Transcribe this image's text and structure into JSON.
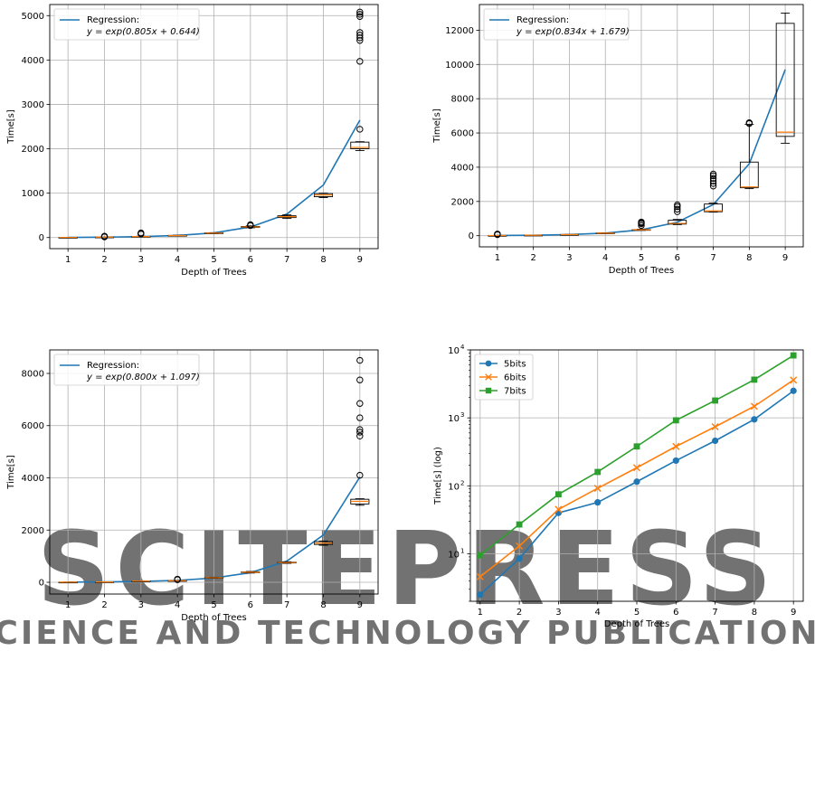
{
  "colors": {
    "blue": "#1f77b4",
    "orange": "#ff7f0e",
    "green": "#2ca02c",
    "grid": "#b0b0b0",
    "box": "#000000",
    "median": "#ff7f0e",
    "watermark": "#e6e6e6"
  },
  "watermark": {
    "line1": "SCITEPRESS",
    "line2": "SCIENCE AND TECHNOLOGY PUBLICATIONS"
  },
  "chart_data": [
    {
      "type": "box",
      "xlabel": "Depth of Trees",
      "ylabel": "Time[s]",
      "xlim": [
        0.5,
        9.5
      ],
      "ylim": [
        -250,
        5250
      ],
      "yticks": [
        0,
        1000,
        2000,
        3000,
        4000,
        5000
      ],
      "categories": [
        1,
        2,
        3,
        4,
        5,
        6,
        7,
        8,
        9
      ],
      "grid": true,
      "legend_position": "top-left",
      "regression": {
        "legend_title": "Regression:",
        "legend_formula": "y = exp(0.805x + 0.644)",
        "x": [
          1,
          2,
          3,
          4,
          5,
          6,
          7,
          8,
          9
        ],
        "y": [
          4,
          9,
          21,
          47,
          106,
          237,
          529,
          1183,
          2645
        ]
      },
      "boxes": [
        {
          "x": 1,
          "q1": 2,
          "median": 3,
          "q3": 4,
          "wlo": 1,
          "whi": 6,
          "outliers": []
        },
        {
          "x": 2,
          "q1": 7,
          "median": 9,
          "q3": 11,
          "wlo": 5,
          "whi": 14,
          "outliers": [
            15,
            22,
            30
          ]
        },
        {
          "x": 3,
          "q1": 20,
          "median": 23,
          "q3": 26,
          "wlo": 17,
          "whi": 30,
          "outliers": [
            80,
            95,
            105
          ]
        },
        {
          "x": 4,
          "q1": 40,
          "median": 44,
          "q3": 48,
          "wlo": 36,
          "whi": 52,
          "outliers": []
        },
        {
          "x": 5,
          "q1": 95,
          "median": 100,
          "q3": 105,
          "wlo": 90,
          "whi": 110,
          "outliers": []
        },
        {
          "x": 6,
          "q1": 230,
          "median": 240,
          "q3": 250,
          "wlo": 220,
          "whi": 262,
          "outliers": [
            270,
            290
          ]
        },
        {
          "x": 7,
          "q1": 450,
          "median": 470,
          "q3": 490,
          "wlo": 430,
          "whi": 510,
          "outliers": []
        },
        {
          "x": 8,
          "q1": 920,
          "median": 960,
          "q3": 990,
          "wlo": 900,
          "whi": 1000,
          "outliers": []
        },
        {
          "x": 9,
          "q1": 2000,
          "median": 2030,
          "q3": 2150,
          "wlo": 1960,
          "whi": 2160,
          "outliers": [
            2440,
            3970,
            4440,
            4500,
            4560,
            4620,
            4980,
            5030,
            5080
          ]
        }
      ]
    },
    {
      "type": "box",
      "xlabel": "Depth of Trees",
      "ylabel": "Time[s]",
      "xlim": [
        0.5,
        9.5
      ],
      "ylim": [
        -650,
        13500
      ],
      "yticks": [
        0,
        2000,
        4000,
        6000,
        8000,
        10000,
        12000
      ],
      "categories": [
        1,
        2,
        3,
        4,
        5,
        6,
        7,
        8,
        9
      ],
      "grid": true,
      "legend_position": "top-left",
      "regression": {
        "legend_title": "Regression:",
        "legend_formula": "y = exp(0.834x + 1.679)",
        "x": [
          1,
          2,
          3,
          4,
          5,
          6,
          7,
          8,
          9
        ],
        "y": [
          12,
          29,
          65,
          150,
          345,
          790,
          1820,
          4200,
          9700
        ]
      },
      "boxes": [
        {
          "x": 1,
          "q1": 8,
          "median": 10,
          "q3": 12,
          "wlo": 5,
          "whi": 15,
          "outliers": [
            60,
            80,
            100
          ]
        },
        {
          "x": 2,
          "q1": 25,
          "median": 28,
          "q3": 31,
          "wlo": 22,
          "whi": 34,
          "outliers": []
        },
        {
          "x": 3,
          "q1": 60,
          "median": 65,
          "q3": 70,
          "wlo": 55,
          "whi": 75,
          "outliers": []
        },
        {
          "x": 4,
          "q1": 140,
          "median": 150,
          "q3": 160,
          "wlo": 130,
          "whi": 170,
          "outliers": []
        },
        {
          "x": 5,
          "q1": 330,
          "median": 345,
          "q3": 360,
          "wlo": 310,
          "whi": 380,
          "outliers": [
            600,
            700,
            750,
            800
          ]
        },
        {
          "x": 6,
          "q1": 680,
          "median": 720,
          "q3": 900,
          "wlo": 650,
          "whi": 950,
          "outliers": [
            1400,
            1550,
            1700,
            1800
          ]
        },
        {
          "x": 7,
          "q1": 1400,
          "median": 1450,
          "q3": 1850,
          "wlo": 1380,
          "whi": 1900,
          "outliers": [
            2900,
            3050,
            3200,
            3350,
            3500,
            3600
          ]
        },
        {
          "x": 8,
          "q1": 2800,
          "median": 2850,
          "q3": 4300,
          "wlo": 2750,
          "whi": 6500,
          "outliers": [
            6550,
            6600
          ]
        },
        {
          "x": 9,
          "q1": 5800,
          "median": 6050,
          "q3": 12400,
          "wlo": 5400,
          "whi": 13000,
          "outliers": []
        }
      ]
    },
    {
      "type": "box",
      "xlabel": "Depth of Trees",
      "ylabel": "Time[s]",
      "xlim": [
        0.5,
        9.5
      ],
      "ylim": [
        -450,
        8900
      ],
      "yticks": [
        0,
        2000,
        4000,
        6000,
        8000
      ],
      "categories": [
        1,
        2,
        3,
        4,
        5,
        6,
        7,
        8,
        9
      ],
      "grid": true,
      "legend_position": "top-left",
      "regression": {
        "legend_title": "Regression:",
        "legend_formula": "y = exp(0.800x + 1.097)",
        "x": [
          1,
          2,
          3,
          4,
          5,
          6,
          7,
          8,
          9
        ],
        "y": [
          7,
          15,
          33,
          74,
          164,
          366,
          814,
          1812,
          4034
        ]
      },
      "boxes": [
        {
          "x": 1,
          "q1": 4,
          "median": 5,
          "q3": 6,
          "wlo": 3,
          "whi": 8,
          "outliers": []
        },
        {
          "x": 2,
          "q1": 12,
          "median": 14,
          "q3": 16,
          "wlo": 10,
          "whi": 18,
          "outliers": []
        },
        {
          "x": 3,
          "q1": 40,
          "median": 45,
          "q3": 50,
          "wlo": 35,
          "whi": 55,
          "outliers": []
        },
        {
          "x": 4,
          "q1": 55,
          "median": 60,
          "q3": 65,
          "wlo": 50,
          "whi": 70,
          "outliers": [
            100,
            120
          ]
        },
        {
          "x": 5,
          "q1": 165,
          "median": 175,
          "q3": 185,
          "wlo": 155,
          "whi": 195,
          "outliers": []
        },
        {
          "x": 6,
          "q1": 370,
          "median": 385,
          "q3": 400,
          "wlo": 355,
          "whi": 415,
          "outliers": []
        },
        {
          "x": 7,
          "q1": 740,
          "median": 755,
          "q3": 770,
          "wlo": 725,
          "whi": 785,
          "outliers": []
        },
        {
          "x": 8,
          "q1": 1450,
          "median": 1500,
          "q3": 1560,
          "wlo": 1420,
          "whi": 1580,
          "outliers": []
        },
        {
          "x": 9,
          "q1": 3000,
          "median": 3100,
          "q3": 3180,
          "wlo": 2950,
          "whi": 3200,
          "outliers": [
            4100,
            5600,
            5750,
            5850,
            6300,
            6850,
            7750,
            8500
          ]
        }
      ]
    },
    {
      "type": "line",
      "log_y": true,
      "xlabel": "Depth of Trees",
      "ylabel": "Time[s] (log)",
      "xlim": [
        0.75,
        9.25
      ],
      "ylim": [
        2.0,
        10000
      ],
      "yticks": [
        10,
        100,
        1000,
        10000
      ],
      "ytick_labels": [
        {
          "base": "10",
          "exp": "1"
        },
        {
          "base": "10",
          "exp": "2"
        },
        {
          "base": "10",
          "exp": "3"
        },
        {
          "base": "10",
          "exp": "4"
        }
      ],
      "x": [
        1,
        2,
        3,
        4,
        5,
        6,
        7,
        8,
        9
      ],
      "grid": true,
      "legend_position": "top-left",
      "series": [
        {
          "name": "5bits",
          "color": "#1f77b4",
          "marker": "circle",
          "values": [
            2.5,
            8.5,
            40,
            57,
            115,
            235,
            460,
            950,
            2500
          ]
        },
        {
          "name": "6bits",
          "color": "#ff7f0e",
          "marker": "x",
          "values": [
            4.6,
            13,
            45,
            92,
            185,
            380,
            740,
            1480,
            3600
          ]
        },
        {
          "name": "7bits",
          "color": "#2ca02c",
          "marker": "square",
          "values": [
            9.5,
            27,
            75,
            160,
            380,
            920,
            1800,
            3650,
            8300
          ]
        }
      ]
    }
  ]
}
